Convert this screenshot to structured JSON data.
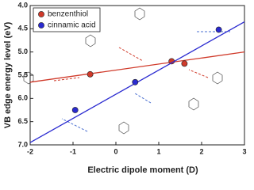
{
  "chart_data": {
    "type": "scatter",
    "x_label": "Electric dipole moment (D)",
    "y_label": "VB edge energy level (eV)",
    "xlim": [
      -2,
      3
    ],
    "xticks": [
      -2,
      -1,
      0,
      1,
      2,
      3
    ],
    "ylim": [
      4.0,
      7.0
    ],
    "yticks": [
      {
        "value": 4.0,
        "label": "4.0"
      },
      4.5,
      {
        "value": 5.0,
        "label": "5.0"
      },
      5.5,
      {
        "value": 6.0,
        "label": "6.0"
      },
      6.5,
      {
        "value": 7.0,
        "label": "7.0"
      }
    ],
    "y_inverted": true,
    "legend": "top-left",
    "series": [
      {
        "name": "benzenthiol",
        "color": "#d03a2a",
        "x": [
          -0.6,
          1.3,
          1.6
        ],
        "values": [
          5.48,
          5.2,
          5.25
        ],
        "fit": {
          "x": [
            -2,
            3
          ],
          "values": [
            5.65,
            5.0
          ]
        }
      },
      {
        "name": "cinnamic acid",
        "color": "#2a2ad0",
        "x": [
          -0.95,
          0.45,
          2.4
        ],
        "values": [
          6.25,
          5.65,
          4.52
        ],
        "fit": {
          "x": [
            -2,
            3
          ],
          "values": [
            6.95,
            4.35
          ]
        }
      }
    ]
  }
}
